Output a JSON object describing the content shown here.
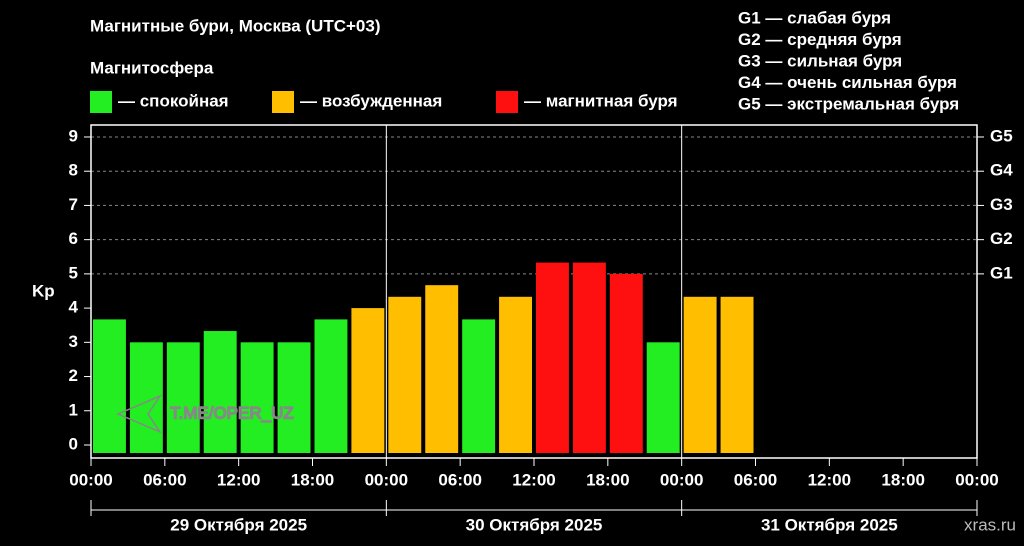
{
  "chart_data": {
    "type": "bar",
    "title": "Магнитные бури, Москва (UTC+03)",
    "legend_title": "Магнитосфера",
    "legend": [
      {
        "name": "— спокойная",
        "color": "#22ee22"
      },
      {
        "name": "— возбужденная",
        "color": "#ffbf00"
      },
      {
        "name": "— магнитная буря",
        "color": "#ff1010"
      }
    ],
    "storm_levels": [
      "G1 — слабая буря",
      "G2 — средняя буря",
      "G3 — сильная буря",
      "G4 — очень сильная буря",
      "G5 — экстремальная буря"
    ],
    "ylabel": "Kp",
    "x": [
      0,
      3,
      6,
      9,
      12,
      15,
      18,
      21,
      24,
      27,
      30,
      33,
      36,
      39,
      42,
      45,
      48,
      51,
      54,
      57,
      60,
      63,
      66,
      69
    ],
    "values": [
      3.67,
      3,
      3,
      3.33,
      3,
      3,
      3.67,
      4,
      4.33,
      4.67,
      3.67,
      4.33,
      5.33,
      5.33,
      5,
      3,
      4.33,
      4.33,
      null,
      null,
      null,
      null,
      null,
      null
    ],
    "colors": [
      "#22ee22",
      "#22ee22",
      "#22ee22",
      "#22ee22",
      "#22ee22",
      "#22ee22",
      "#22ee22",
      "#ffbf00",
      "#ffbf00",
      "#ffbf00",
      "#22ee22",
      "#ffbf00",
      "#ff1010",
      "#ff1010",
      "#ff1010",
      "#22ee22",
      "#ffbf00",
      "#ffbf00",
      null,
      null,
      null,
      null,
      null,
      null
    ],
    "xlim": [
      0,
      72
    ],
    "xticks": [
      {
        "value": 0,
        "label": "00:00"
      },
      {
        "value": 6,
        "label": "06:00"
      },
      {
        "value": 12,
        "label": "12:00"
      },
      {
        "value": 18,
        "label": "18:00"
      },
      {
        "value": 24,
        "label": "00:00"
      },
      {
        "value": 30,
        "label": "06:00"
      },
      {
        "value": 36,
        "label": "12:00"
      },
      {
        "value": 42,
        "label": "18:00"
      },
      {
        "value": 48,
        "label": "00:00"
      },
      {
        "value": 54,
        "label": "06:00"
      },
      {
        "value": 60,
        "label": "12:00"
      },
      {
        "value": 66,
        "label": "18:00"
      },
      {
        "value": 72,
        "label": "00:00"
      }
    ],
    "day_labels": [
      "29 Октября 2025",
      "30 Октября 2025",
      "31 Октября 2025"
    ],
    "ylim": [
      -0.38,
      9.35
    ],
    "yticks": [
      0,
      1,
      2,
      3,
      4,
      5,
      6,
      7,
      8,
      9
    ],
    "y2lim": [
      -0.38,
      9.35
    ],
    "y2ticks": [
      {
        "value": 5,
        "label": "G1"
      },
      {
        "value": 6,
        "label": "G2"
      },
      {
        "value": 7,
        "label": "G3"
      },
      {
        "value": 8,
        "label": "G4"
      },
      {
        "value": 9,
        "label": "G5"
      }
    ],
    "grid": true,
    "watermark": "T.ME/OPER_UZ",
    "source": "xras.ru"
  }
}
